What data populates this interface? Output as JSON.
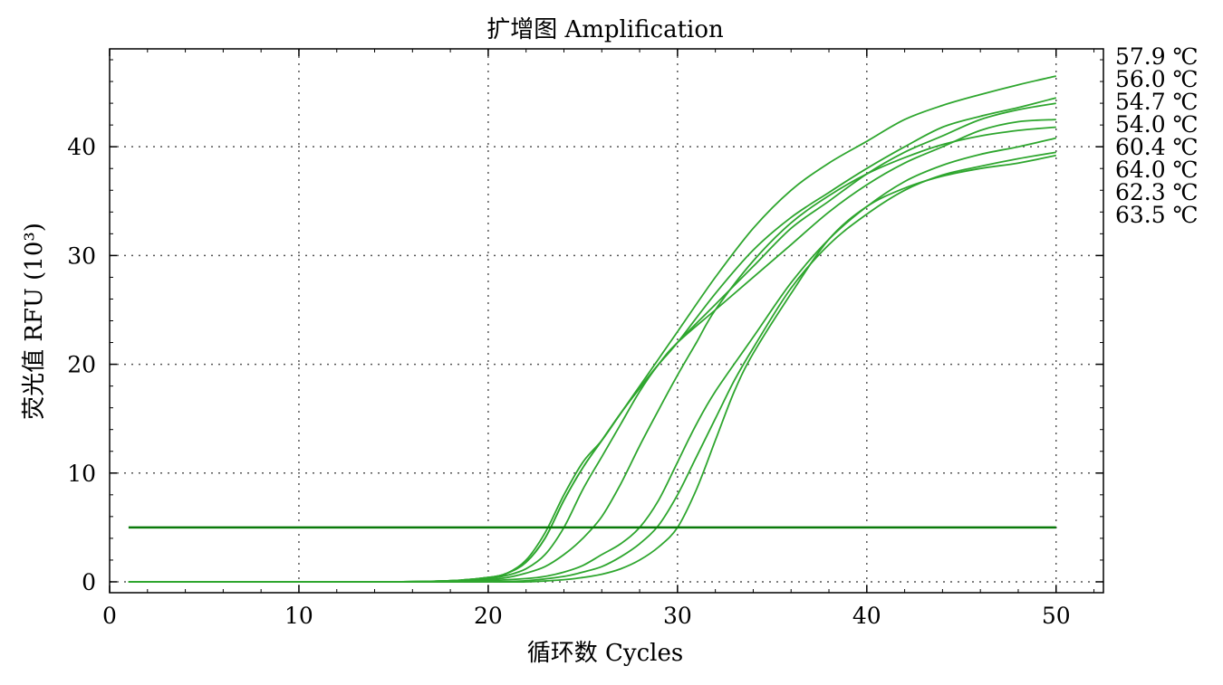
{
  "chart_data": {
    "type": "line",
    "title": "扩增图 Amplification",
    "xlabel": "循环数 Cycles",
    "ylabel": "荧光值 RFU (10³)",
    "xlim": [
      0,
      52.5
    ],
    "ylim": [
      -1,
      49
    ],
    "xticks": [
      "0",
      "10",
      "20",
      "30",
      "40",
      "50"
    ],
    "yticks": [
      "0",
      "10",
      "20",
      "30",
      "40"
    ],
    "grid": true,
    "legend_position": "right",
    "threshold": 5,
    "line_color": "#2ea62e",
    "threshold_color": "#0a7a0a",
    "series": [
      {
        "name": "57.9 ℃",
        "x": [
          1,
          5,
          10,
          15,
          18,
          20,
          21,
          22,
          23,
          24,
          25,
          26,
          27,
          28,
          29,
          30,
          32,
          34,
          36,
          38,
          40,
          42,
          44,
          46,
          48,
          50
        ],
        "values": [
          0,
          0,
          0,
          0,
          0.1,
          0.4,
          0.8,
          2,
          4.5,
          8,
          11,
          13,
          15.5,
          18,
          20.5,
          23,
          28,
          32.5,
          36,
          38.5,
          40.5,
          42.5,
          43.8,
          44.8,
          45.7,
          46.5
        ]
      },
      {
        "name": "56.0 ℃",
        "x": [
          1,
          5,
          10,
          15,
          18,
          20,
          21,
          22,
          23,
          24,
          25,
          26,
          27,
          28,
          29,
          30,
          32,
          34,
          36,
          38,
          40,
          42,
          44,
          46,
          48,
          50
        ],
        "values": [
          0,
          0,
          0,
          0,
          0.1,
          0.4,
          0.8,
          1.8,
          4,
          7.5,
          10.5,
          13,
          15.5,
          17.8,
          20,
          22,
          26.5,
          30.5,
          33.5,
          35.8,
          38,
          40,
          41.8,
          42.8,
          43.6,
          44.5
        ]
      },
      {
        "name": "54.7 ℃",
        "x": [
          1,
          5,
          10,
          15,
          18,
          20,
          21,
          22,
          23,
          24,
          25,
          26,
          27,
          28,
          29,
          30,
          32,
          34,
          36,
          38,
          40,
          42,
          44,
          46,
          48,
          50
        ],
        "values": [
          0,
          0,
          0,
          0,
          0.1,
          0.4,
          0.8,
          1.8,
          4,
          7.5,
          10.5,
          13,
          15.5,
          17.8,
          20,
          22,
          25.5,
          29,
          32.5,
          35,
          37.5,
          39.5,
          41,
          42.5,
          43.4,
          44
        ]
      },
      {
        "name": "54.0 ℃",
        "x": [
          1,
          5,
          10,
          15,
          18,
          20,
          21,
          22,
          23,
          24,
          25,
          26,
          27,
          28,
          29,
          30,
          32,
          34,
          36,
          38,
          40,
          42,
          44,
          46,
          48,
          50
        ],
        "values": [
          0,
          0,
          0,
          0,
          0.1,
          0.3,
          0.6,
          1.2,
          2.5,
          5,
          8.5,
          11.5,
          14.5,
          17.5,
          20,
          22,
          25,
          28,
          31,
          34,
          36.5,
          38.5,
          40,
          41.5,
          42.3,
          42.5
        ]
      },
      {
        "name": "60.4 ℃",
        "x": [
          1,
          5,
          10,
          15,
          18,
          20,
          21,
          22,
          23,
          24,
          25,
          26,
          27,
          28,
          29,
          30,
          31,
          32,
          34,
          36,
          38,
          40,
          42,
          44,
          46,
          48,
          50
        ],
        "values": [
          0,
          0,
          0,
          0,
          0,
          0.2,
          0.4,
          0.8,
          1.4,
          2.5,
          4,
          6,
          9,
          12.5,
          15.8,
          19,
          22,
          25,
          29.5,
          33,
          35.5,
          37.5,
          39,
          40.2,
          41,
          41.5,
          41.8
        ]
      },
      {
        "name": "64.0 ℃",
        "x": [
          1,
          5,
          10,
          15,
          18,
          20,
          22,
          23,
          24,
          25,
          26,
          27,
          28,
          29,
          30,
          31,
          32,
          34,
          36,
          38,
          40,
          42,
          44,
          46,
          48,
          50
        ],
        "values": [
          0,
          0,
          0,
          0,
          0,
          0.1,
          0.3,
          0.5,
          0.9,
          1.5,
          2.5,
          3.5,
          5,
          7.5,
          11,
          14.5,
          17.5,
          22.5,
          27.5,
          31.5,
          34.5,
          36.8,
          38.3,
          39.3,
          40,
          40.8
        ]
      },
      {
        "name": "62.3 ℃",
        "x": [
          1,
          5,
          10,
          15,
          18,
          20,
          22,
          24,
          25,
          26,
          27,
          28,
          29,
          30,
          31,
          32,
          33,
          34,
          36,
          38,
          40,
          42,
          44,
          46,
          48,
          50
        ],
        "values": [
          0,
          0,
          0,
          0,
          0,
          0,
          0.1,
          0.5,
          0.9,
          1.4,
          2.3,
          3.5,
          5.2,
          8,
          11.5,
          15,
          18.5,
          21.5,
          27,
          31,
          33.8,
          36,
          37.4,
          38.2,
          38.9,
          39.5
        ]
      },
      {
        "name": "63.5 ℃",
        "x": [
          1,
          5,
          10,
          15,
          18,
          20,
          22,
          24,
          25,
          26,
          27,
          28,
          29,
          30,
          31,
          32,
          33,
          34,
          36,
          38,
          40,
          42,
          44,
          46,
          48,
          50
        ],
        "values": [
          0,
          0,
          0,
          0,
          0,
          0,
          0,
          0.2,
          0.4,
          0.7,
          1.2,
          2,
          3.2,
          5,
          8.5,
          13,
          17.5,
          21,
          26.5,
          31.5,
          34.5,
          36.2,
          37.3,
          38,
          38.5,
          39.2
        ]
      }
    ]
  }
}
